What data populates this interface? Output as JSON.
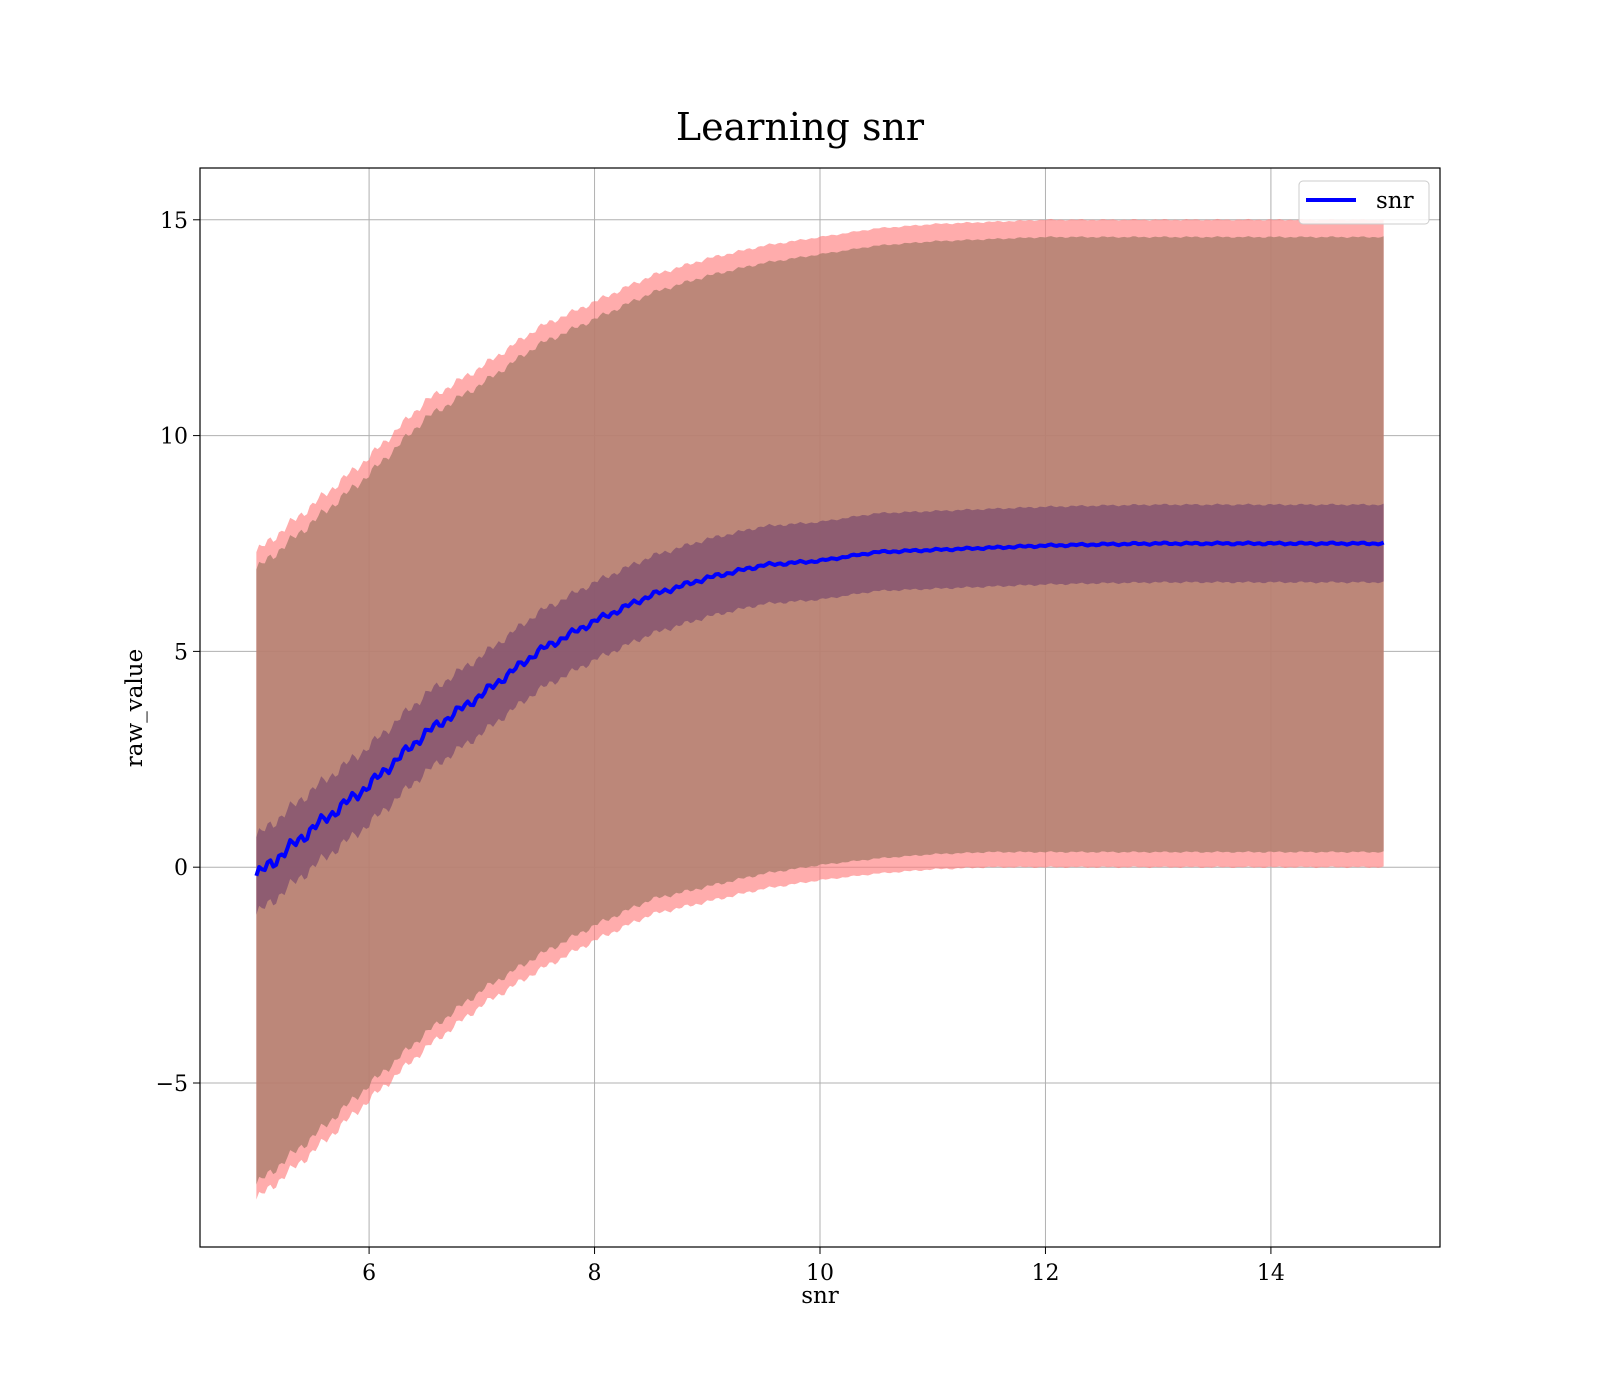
{
  "chart_data": {
    "type": "line",
    "title": "Learning snr",
    "xlabel": "snr",
    "ylabel": "raw_value",
    "xlim": [
      4.5,
      15.5
    ],
    "ylim": [
      -8.8,
      16.2
    ],
    "xticks": [
      6,
      8,
      10,
      12,
      14
    ],
    "yticks": [
      -5,
      0,
      5,
      10,
      15
    ],
    "xtick_labels": [
      "6",
      "8",
      "10",
      "12",
      "14"
    ],
    "ytick_labels": [
      "−5",
      "0",
      "5",
      "10",
      "15"
    ],
    "grid": true,
    "legend_position": "top-right",
    "series": [
      {
        "name": "snr",
        "color": "#0000ff",
        "x": [
          5.0,
          5.5,
          6.0,
          6.5,
          7.0,
          7.5,
          8.0,
          8.5,
          9.0,
          9.5,
          10.0,
          10.5,
          11.0,
          11.5,
          12.0,
          12.5,
          13.0,
          13.5,
          14.0,
          14.5,
          15.0
        ],
        "mean": [
          -0.2,
          0.9,
          1.9,
          3.1,
          4.0,
          5.0,
          5.7,
          6.3,
          6.7,
          7.0,
          7.1,
          7.3,
          7.35,
          7.4,
          7.45,
          7.48,
          7.5,
          7.5,
          7.5,
          7.5,
          7.5
        ],
        "inner_band_lower": [
          -1.1,
          0.0,
          1.0,
          2.2,
          3.1,
          4.1,
          4.8,
          5.4,
          5.8,
          6.1,
          6.2,
          6.4,
          6.45,
          6.5,
          6.55,
          6.58,
          6.6,
          6.6,
          6.6,
          6.6,
          6.6
        ],
        "inner_band_upper": [
          0.7,
          1.8,
          2.8,
          4.0,
          4.9,
          5.9,
          6.6,
          7.2,
          7.6,
          7.9,
          8.0,
          8.2,
          8.25,
          8.3,
          8.35,
          8.38,
          8.4,
          8.4,
          8.4,
          8.4,
          8.4
        ],
        "outer_band_lower": [
          -7.7,
          -6.6,
          -5.4,
          -4.2,
          -3.2,
          -2.4,
          -1.7,
          -1.1,
          -0.8,
          -0.5,
          -0.3,
          -0.15,
          -0.05,
          0.0,
          0.0,
          0.0,
          0.0,
          0.0,
          0.0,
          0.0,
          0.0
        ],
        "outer_band_upper": [
          7.3,
          8.4,
          9.5,
          10.8,
          11.6,
          12.5,
          13.1,
          13.7,
          14.1,
          14.4,
          14.6,
          14.8,
          14.9,
          14.95,
          15.0,
          15.0,
          15.0,
          15.0,
          15.0,
          15.0,
          15.0
        ]
      }
    ],
    "colors": {
      "outer_band": "#ff8080",
      "middle_band": "#b08070",
      "inner_band": "#7b4a6e",
      "line": "#0000ff",
      "grid": "#b0b0b0"
    }
  }
}
